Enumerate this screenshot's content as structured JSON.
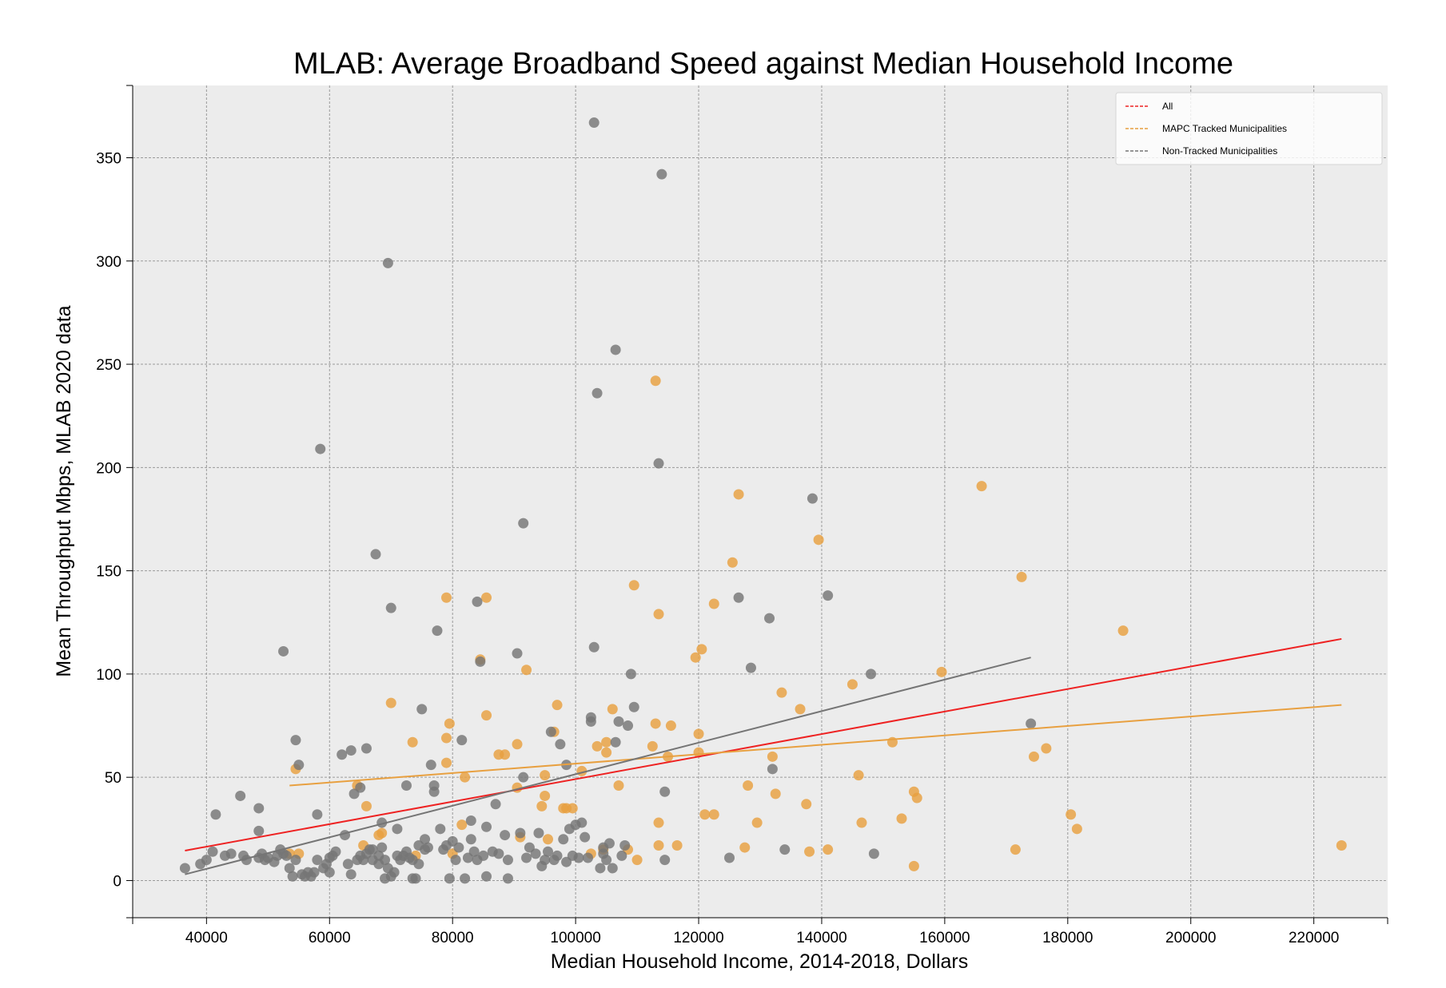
{
  "chart_data": {
    "type": "scatter",
    "title": "MLAB: Average Broadband Speed against Median Household Income",
    "xlabel": "Median Household Income, 2014-2018, Dollars",
    "ylabel": "Mean Throughput Mbps, MLAB 2020 data",
    "xlim": [
      28000,
      232000
    ],
    "ylim": [
      -18,
      385
    ],
    "xticks": [
      40000,
      60000,
      80000,
      100000,
      120000,
      140000,
      160000,
      180000,
      200000,
      220000
    ],
    "yticks": [
      0,
      50,
      100,
      150,
      200,
      250,
      300,
      350
    ],
    "grid": true,
    "legend_position": "top-right",
    "colors": {
      "background": "#ececec",
      "all": "#ee2222",
      "tracked": "#e8a040",
      "nontracked": "#757575"
    },
    "series": [
      {
        "name": "MAPC Tracked Municipalities",
        "type": "scatter",
        "color": "#e8a040",
        "points": [
          [
            54500,
            54
          ],
          [
            55000,
            13
          ],
          [
            53500,
            13
          ],
          [
            64500,
            46
          ],
          [
            65500,
            17
          ],
          [
            66000,
            36
          ],
          [
            68000,
            22
          ],
          [
            68500,
            23
          ],
          [
            70000,
            86
          ],
          [
            73500,
            67
          ],
          [
            74000,
            12
          ],
          [
            79000,
            137
          ],
          [
            79500,
            76
          ],
          [
            79000,
            69
          ],
          [
            79000,
            57
          ],
          [
            80000,
            13
          ],
          [
            81500,
            27
          ],
          [
            82000,
            50
          ],
          [
            84500,
            107
          ],
          [
            85500,
            137
          ],
          [
            85500,
            80
          ],
          [
            87500,
            61
          ],
          [
            88500,
            61
          ],
          [
            90500,
            66
          ],
          [
            90500,
            45
          ],
          [
            91000,
            21
          ],
          [
            92000,
            102
          ],
          [
            94500,
            36
          ],
          [
            95000,
            51
          ],
          [
            95000,
            41
          ],
          [
            95500,
            20
          ],
          [
            96500,
            72
          ],
          [
            97000,
            85
          ],
          [
            98000,
            35
          ],
          [
            98500,
            35
          ],
          [
            99500,
            35
          ],
          [
            101000,
            53
          ],
          [
            102500,
            13
          ],
          [
            103500,
            65
          ],
          [
            104500,
            15
          ],
          [
            105000,
            62
          ],
          [
            105000,
            67
          ],
          [
            106000,
            83
          ],
          [
            107000,
            46
          ],
          [
            108500,
            15
          ],
          [
            109500,
            143
          ],
          [
            110000,
            10
          ],
          [
            113000,
            242
          ],
          [
            113500,
            129
          ],
          [
            113000,
            76
          ],
          [
            113500,
            28
          ],
          [
            113500,
            17
          ],
          [
            112500,
            65
          ],
          [
            115000,
            60
          ],
          [
            115500,
            75
          ],
          [
            116500,
            17
          ],
          [
            120000,
            71
          ],
          [
            120000,
            62
          ],
          [
            119500,
            108
          ],
          [
            120500,
            112
          ],
          [
            121000,
            32
          ],
          [
            122500,
            32
          ],
          [
            122500,
            134
          ],
          [
            125500,
            154
          ],
          [
            126500,
            187
          ],
          [
            127500,
            16
          ],
          [
            128000,
            46
          ],
          [
            129500,
            28
          ],
          [
            132000,
            60
          ],
          [
            132500,
            42
          ],
          [
            133500,
            91
          ],
          [
            136500,
            83
          ],
          [
            137500,
            37
          ],
          [
            138000,
            14
          ],
          [
            139500,
            165
          ],
          [
            141000,
            15
          ],
          [
            145000,
            95
          ],
          [
            146000,
            51
          ],
          [
            146500,
            28
          ],
          [
            151500,
            67
          ],
          [
            153000,
            30
          ],
          [
            155000,
            43
          ],
          [
            155500,
            40
          ],
          [
            155000,
            7
          ],
          [
            159500,
            101
          ],
          [
            166000,
            191
          ],
          [
            171500,
            15
          ],
          [
            172500,
            147
          ],
          [
            174500,
            60
          ],
          [
            176500,
            64
          ],
          [
            180500,
            32
          ],
          [
            181500,
            25
          ],
          [
            189000,
            121
          ],
          [
            224500,
            17
          ]
        ]
      },
      {
        "name": "Non-Tracked Municipalities",
        "type": "scatter",
        "color": "#757575",
        "points": [
          [
            36500,
            6
          ],
          [
            39000,
            8
          ],
          [
            40000,
            10
          ],
          [
            41000,
            14
          ],
          [
            41500,
            32
          ],
          [
            43000,
            12
          ],
          [
            44000,
            13
          ],
          [
            45500,
            41
          ],
          [
            46000,
            12
          ],
          [
            46500,
            10
          ],
          [
            48500,
            11
          ],
          [
            48500,
            24
          ],
          [
            48500,
            35
          ],
          [
            49000,
            13
          ],
          [
            49500,
            10
          ],
          [
            50000,
            11
          ],
          [
            51000,
            9
          ],
          [
            51500,
            12
          ],
          [
            52000,
            15
          ],
          [
            52500,
            13
          ],
          [
            52500,
            111
          ],
          [
            53000,
            12
          ],
          [
            53500,
            6
          ],
          [
            54000,
            2
          ],
          [
            54500,
            10
          ],
          [
            54500,
            68
          ],
          [
            55000,
            56
          ],
          [
            55500,
            3
          ],
          [
            56000,
            2
          ],
          [
            56500,
            4
          ],
          [
            57000,
            2
          ],
          [
            57500,
            4
          ],
          [
            58000,
            10
          ],
          [
            58000,
            32
          ],
          [
            58500,
            209
          ],
          [
            59000,
            6
          ],
          [
            59500,
            8
          ],
          [
            60000,
            11
          ],
          [
            60000,
            4
          ],
          [
            60500,
            12
          ],
          [
            61000,
            14
          ],
          [
            62000,
            61
          ],
          [
            62500,
            22
          ],
          [
            63000,
            8
          ],
          [
            63500,
            3
          ],
          [
            63500,
            63
          ],
          [
            64000,
            42
          ],
          [
            64500,
            10
          ],
          [
            65000,
            45
          ],
          [
            65000,
            12
          ],
          [
            65500,
            10
          ],
          [
            66000,
            13
          ],
          [
            66000,
            64
          ],
          [
            66500,
            15
          ],
          [
            67000,
            10
          ],
          [
            67000,
            15
          ],
          [
            67500,
            158
          ],
          [
            68000,
            8
          ],
          [
            68000,
            12
          ],
          [
            68500,
            16
          ],
          [
            68500,
            28
          ],
          [
            69000,
            10
          ],
          [
            69500,
            299
          ],
          [
            69000,
            1
          ],
          [
            69500,
            6
          ],
          [
            70000,
            132
          ],
          [
            70000,
            2
          ],
          [
            70500,
            4
          ],
          [
            71000,
            12
          ],
          [
            71000,
            25
          ],
          [
            71500,
            10
          ],
          [
            72000,
            12
          ],
          [
            72500,
            46
          ],
          [
            72500,
            14
          ],
          [
            73000,
            11
          ],
          [
            73500,
            10
          ],
          [
            73500,
            1
          ],
          [
            74000,
            1
          ],
          [
            74500,
            17
          ],
          [
            74500,
            8
          ],
          [
            75000,
            83
          ],
          [
            75500,
            20
          ],
          [
            75500,
            15
          ],
          [
            76000,
            16
          ],
          [
            76500,
            56
          ],
          [
            77000,
            46
          ],
          [
            77000,
            43
          ],
          [
            77500,
            121
          ],
          [
            78000,
            25
          ],
          [
            78500,
            15
          ],
          [
            79000,
            17
          ],
          [
            79500,
            1
          ],
          [
            80000,
            19
          ],
          [
            80500,
            10
          ],
          [
            81000,
            16
          ],
          [
            81500,
            68
          ],
          [
            82000,
            1
          ],
          [
            82500,
            11
          ],
          [
            83000,
            20
          ],
          [
            83000,
            29
          ],
          [
            83500,
            14
          ],
          [
            84000,
            135
          ],
          [
            84000,
            10
          ],
          [
            84500,
            106
          ],
          [
            85000,
            12
          ],
          [
            85500,
            26
          ],
          [
            85500,
            2
          ],
          [
            86500,
            14
          ],
          [
            87000,
            37
          ],
          [
            87500,
            13
          ],
          [
            88500,
            22
          ],
          [
            89000,
            10
          ],
          [
            89000,
            1
          ],
          [
            90500,
            110
          ],
          [
            91000,
            23
          ],
          [
            91500,
            50
          ],
          [
            91500,
            173
          ],
          [
            92000,
            11
          ],
          [
            92500,
            16
          ],
          [
            93500,
            13
          ],
          [
            94000,
            23
          ],
          [
            94500,
            7
          ],
          [
            95000,
            10
          ],
          [
            95500,
            14
          ],
          [
            96000,
            72
          ],
          [
            96500,
            10
          ],
          [
            97000,
            12
          ],
          [
            97500,
            66
          ],
          [
            98000,
            20
          ],
          [
            98500,
            56
          ],
          [
            98500,
            9
          ],
          [
            99000,
            25
          ],
          [
            99500,
            12
          ],
          [
            100000,
            27
          ],
          [
            100500,
            11
          ],
          [
            101000,
            28
          ],
          [
            101500,
            21
          ],
          [
            102000,
            11
          ],
          [
            102500,
            77
          ],
          [
            102500,
            79
          ],
          [
            103000,
            113
          ],
          [
            103000,
            367
          ],
          [
            103500,
            236
          ],
          [
            104000,
            6
          ],
          [
            104500,
            16
          ],
          [
            104500,
            13
          ],
          [
            105000,
            10
          ],
          [
            105500,
            18
          ],
          [
            106000,
            6
          ],
          [
            106500,
            257
          ],
          [
            106500,
            67
          ],
          [
            107000,
            77
          ],
          [
            107500,
            12
          ],
          [
            108000,
            17
          ],
          [
            108500,
            75
          ],
          [
            109000,
            100
          ],
          [
            109500,
            84
          ],
          [
            113500,
            202
          ],
          [
            114000,
            342
          ],
          [
            114500,
            10
          ],
          [
            114500,
            43
          ],
          [
            125000,
            11
          ],
          [
            126500,
            137
          ],
          [
            128500,
            103
          ],
          [
            131500,
            127
          ],
          [
            132000,
            54
          ],
          [
            134000,
            15
          ],
          [
            138500,
            185
          ],
          [
            141000,
            138
          ],
          [
            148000,
            100
          ],
          [
            148500,
            13
          ],
          [
            174000,
            76
          ]
        ]
      },
      {
        "name": "All",
        "type": "line",
        "color": "#ee2222",
        "x": [
          36500,
          224500
        ],
        "y": [
          14.5,
          117
        ]
      },
      {
        "name": "MAPC Tracked Municipalities",
        "type": "line",
        "color": "#e8a040",
        "x": [
          53500,
          224500
        ],
        "y": [
          46,
          85
        ]
      },
      {
        "name": "Non-Tracked Municipalities",
        "type": "line",
        "color": "#757575",
        "x": [
          36500,
          174000
        ],
        "y": [
          3,
          108
        ]
      }
    ],
    "legend": [
      {
        "label": "All",
        "color": "#ee2222"
      },
      {
        "label": "MAPC Tracked Municipalities",
        "color": "#e8a040"
      },
      {
        "label": "Non-Tracked Municipalities",
        "color": "#757575"
      }
    ]
  }
}
